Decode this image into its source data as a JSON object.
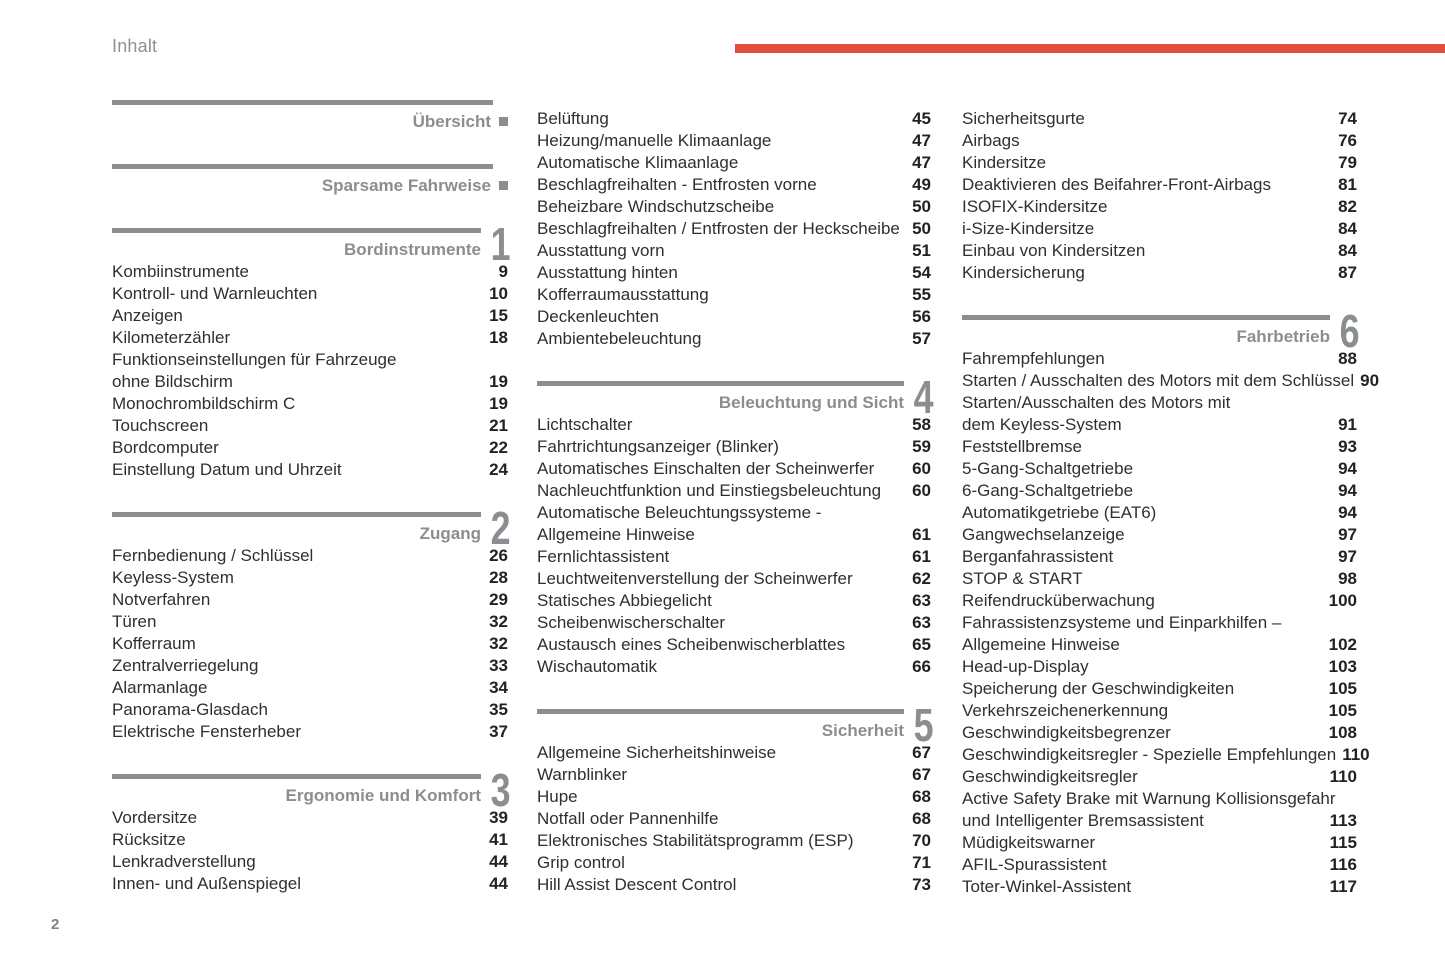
{
  "page": {
    "title": "Inhalt",
    "page_number": "2",
    "accent_color": "#e24d3c",
    "gray_color": "#8a8e91"
  },
  "columns": [
    {
      "blocks": [
        {
          "header": {
            "label": "Übersicht",
            "marker": "square"
          },
          "items": []
        },
        {
          "header": {
            "label": "Sparsame Fahrweise",
            "marker": "square"
          },
          "items": []
        },
        {
          "header": {
            "label": "Bordinstrumente",
            "marker": "number",
            "number": "1"
          },
          "items": [
            {
              "label": "Kombiinstrumente",
              "page": "9"
            },
            {
              "label": "Kontroll- und Warnleuchten",
              "page": "10"
            },
            {
              "label": "Anzeigen",
              "page": "15"
            },
            {
              "label": "Kilometerzähler",
              "page": "18"
            },
            {
              "label": "Funktionseinstellungen für Fahrzeuge",
              "page": ""
            },
            {
              "label": "ohne Bildschirm",
              "page": "19"
            },
            {
              "label": "Monochrombildschirm C",
              "page": "19"
            },
            {
              "label": "Touchscreen",
              "page": "21"
            },
            {
              "label": "Bordcomputer",
              "page": "22"
            },
            {
              "label": "Einstellung Datum und Uhrzeit",
              "page": "24"
            }
          ]
        },
        {
          "header": {
            "label": "Zugang",
            "marker": "number",
            "number": "2"
          },
          "items": [
            {
              "label": "Fernbedienung / Schlüssel",
              "page": "26"
            },
            {
              "label": "Keyless-System",
              "page": "28"
            },
            {
              "label": "Notverfahren",
              "page": "29"
            },
            {
              "label": "Türen",
              "page": "32"
            },
            {
              "label": "Kofferraum",
              "page": "32"
            },
            {
              "label": "Zentralverriegelung",
              "page": "33"
            },
            {
              "label": "Alarmanlage",
              "page": "34"
            },
            {
              "label": "Panorama-Glasdach",
              "page": "35"
            },
            {
              "label": "Elektrische Fensterheber",
              "page": "37"
            }
          ]
        },
        {
          "header": {
            "label": "Ergonomie und Komfort",
            "marker": "number",
            "number": "3"
          },
          "items": [
            {
              "label": "Vordersitze",
              "page": "39"
            },
            {
              "label": "Rücksitze",
              "page": "41"
            },
            {
              "label": "Lenkradverstellung",
              "page": "44"
            },
            {
              "label": "Innen- und Außenspiegel",
              "page": "44"
            }
          ]
        }
      ]
    },
    {
      "blocks": [
        {
          "items": [
            {
              "label": "Belüftung",
              "page": "45"
            },
            {
              "label": "Heizung/manuelle Klimaanlage",
              "page": "47"
            },
            {
              "label": "Automatische Klimaanlage",
              "page": "47"
            },
            {
              "label": "Beschlagfreihalten - Entfrosten vorne",
              "page": "49"
            },
            {
              "label": "Beheizbare Windschutzscheibe",
              "page": "50"
            },
            {
              "label": "Beschlagfreihalten / Entfrosten der Heckscheibe",
              "page": "50"
            },
            {
              "label": "Ausstattung vorn",
              "page": "51"
            },
            {
              "label": "Ausstattung hinten",
              "page": "54"
            },
            {
              "label": "Kofferraumausstattung",
              "page": "55"
            },
            {
              "label": "Deckenleuchten",
              "page": "56"
            },
            {
              "label": "Ambientebeleuchtung",
              "page": "57"
            }
          ]
        },
        {
          "header": {
            "label": "Beleuchtung und Sicht",
            "marker": "number",
            "number": "4"
          },
          "items": [
            {
              "label": "Lichtschalter",
              "page": "58"
            },
            {
              "label": "Fahrtrichtungsanzeiger (Blinker)",
              "page": "59"
            },
            {
              "label": "Automatisches Einschalten der Scheinwerfer",
              "page": "60"
            },
            {
              "label": "Nachleuchtfunktion und Einstiegsbeleuchtung",
              "page": "60"
            },
            {
              "label": "Automatische Beleuchtungssysteme -",
              "page": ""
            },
            {
              "label": "Allgemeine Hinweise",
              "page": "61"
            },
            {
              "label": "Fernlichtassistent",
              "page": "61"
            },
            {
              "label": "Leuchtweitenverstellung der Scheinwerfer",
              "page": "62"
            },
            {
              "label": "Statisches Abbiegelicht",
              "page": "63"
            },
            {
              "label": "Scheibenwischerschalter",
              "page": "63"
            },
            {
              "label": "Austausch eines Scheibenwischerblattes",
              "page": "65"
            },
            {
              "label": "Wischautomatik",
              "page": "66"
            }
          ]
        },
        {
          "header": {
            "label": "Sicherheit",
            "marker": "number",
            "number": "5"
          },
          "items": [
            {
              "label": "Allgemeine Sicherheitshinweise",
              "page": "67"
            },
            {
              "label": "Warnblinker",
              "page": "67"
            },
            {
              "label": "Hupe",
              "page": "68"
            },
            {
              "label": "Notfall oder Pannenhilfe",
              "page": "68"
            },
            {
              "label": "Elektronisches Stabilitätsprogramm (ESP)",
              "page": "70"
            },
            {
              "label": "Grip control",
              "page": "71"
            },
            {
              "label": "Hill Assist Descent Control",
              "page": "73"
            }
          ]
        }
      ]
    },
    {
      "blocks": [
        {
          "items": [
            {
              "label": "Sicherheitsgurte",
              "page": "74"
            },
            {
              "label": "Airbags",
              "page": "76"
            },
            {
              "label": "Kindersitze",
              "page": "79"
            },
            {
              "label": "Deaktivieren des Beifahrer-Front-Airbags",
              "page": "81"
            },
            {
              "label": "ISOFIX-Kindersitze",
              "page": "82"
            },
            {
              "label": "i-Size-Kindersitze",
              "page": "84"
            },
            {
              "label": "Einbau von Kindersitzen",
              "page": "84"
            },
            {
              "label": "Kindersicherung",
              "page": "87"
            }
          ]
        },
        {
          "header": {
            "label": "Fahrbetrieb",
            "marker": "number",
            "number": "6"
          },
          "items": [
            {
              "label": "Fahrempfehlungen",
              "page": "88"
            },
            {
              "label": "Starten / Ausschalten des Motors mit dem Schlüssel",
              "page": "90"
            },
            {
              "label": "Starten/Ausschalten des Motors mit",
              "page": ""
            },
            {
              "label": "dem Keyless-System",
              "page": "91"
            },
            {
              "label": "Feststellbremse",
              "page": "93"
            },
            {
              "label": "5-Gang-Schaltgetriebe",
              "page": "94"
            },
            {
              "label": "6-Gang-Schaltgetriebe",
              "page": "94"
            },
            {
              "label": "Automatikgetriebe (EAT6)",
              "page": "94"
            },
            {
              "label": "Gangwechselanzeige",
              "page": "97"
            },
            {
              "label": "Berganfahrassistent",
              "page": "97"
            },
            {
              "label": "STOP & START",
              "page": "98"
            },
            {
              "label": "Reifendrucküberwachung",
              "page": "100"
            },
            {
              "label": "Fahrassistenzsysteme und Einparkhilfen –",
              "page": ""
            },
            {
              "label": "Allgemeine Hinweise",
              "page": "102"
            },
            {
              "label": "Head-up-Display",
              "page": "103"
            },
            {
              "label": "Speicherung der Geschwindigkeiten",
              "page": "105"
            },
            {
              "label": "Verkehrszeichenerkennung",
              "page": "105"
            },
            {
              "label": "Geschwindigkeitsbegrenzer",
              "page": "108"
            },
            {
              "label": "Geschwindigkeitsregler - Spezielle Empfehlungen",
              "page": "110"
            },
            {
              "label": "Geschwindigkeitsregler",
              "page": "110"
            },
            {
              "label": "Active Safety Brake mit Warnung Kollisionsgefahr",
              "page": ""
            },
            {
              "label": "und Intelligenter Bremsassistent",
              "page": "113"
            },
            {
              "label": "Müdigkeitswarner",
              "page": "115"
            },
            {
              "label": "AFIL-Spurassistent",
              "page": "116"
            },
            {
              "label": "Toter-Winkel-Assistent",
              "page": "117"
            }
          ]
        }
      ]
    }
  ]
}
